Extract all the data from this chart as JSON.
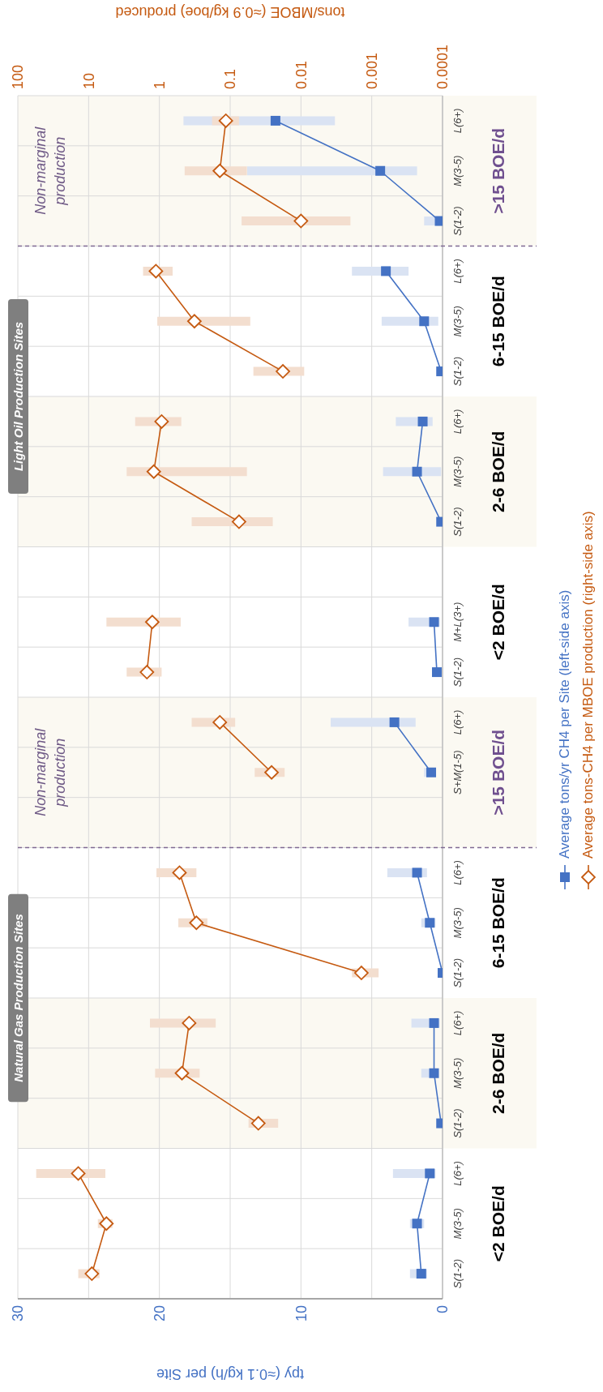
{
  "chart_data": {
    "type": "line",
    "orientation": "horizontal",
    "categories": [
      "L(6+)",
      "M(3-5)",
      "S(1-2)",
      "L(6+)",
      "M(3-5)",
      "S(1-2)",
      "L(6+)",
      "M(3-5)",
      "S(1-2)",
      null,
      "M+L(3+)",
      "S(1-2)",
      "L(6+)",
      "S+M(1-5)",
      null,
      "L(6+)",
      "M(3-5)",
      "S(1-2)",
      "L(6+)",
      "M(3-5)",
      "S(1-2)",
      "L(6+)",
      "M(3-5)",
      "S(1-2)"
    ],
    "series": [
      {
        "name": "Average tons/yr CH4 per Site (left-side axis)",
        "color": "#4472c4",
        "marker": "square",
        "values": [
          11.8,
          4.4,
          0.2,
          4.0,
          1.3,
          0.1,
          1.4,
          1.8,
          0.1,
          null,
          0.6,
          0.4,
          3.4,
          0.8,
          null,
          1.8,
          0.9,
          0,
          0.6,
          0.6,
          0.1,
          0.9,
          1.8,
          1.5
        ],
        "errors": [
          [
            7.6,
            18.3
          ],
          [
            1.8,
            13.8
          ],
          [
            0,
            1.3
          ],
          [
            2.4,
            6.4
          ],
          [
            0.3,
            4.3
          ],
          null,
          [
            0.7,
            3.3
          ],
          [
            0.1,
            4.2
          ],
          null,
          null,
          [
            0.2,
            2.4
          ],
          [
            0.2,
            0.7
          ],
          [
            1.9,
            7.9
          ],
          [
            0.5,
            1.3
          ],
          null,
          [
            1.1,
            3.9
          ],
          [
            0.5,
            1.5
          ],
          null,
          [
            0.2,
            2.2
          ],
          [
            0.3,
            1.5
          ],
          null,
          [
            0.5,
            3.5
          ],
          [
            1.3,
            2.3
          ],
          [
            1.1,
            2.3
          ]
        ]
      },
      {
        "name": "Average tons-CH4 per MBOE production (right-side axis)",
        "color": "#c55a11",
        "axis": "x2",
        "marker": "diamond",
        "values": [
          0.115,
          0.14,
          0.01,
          1.12,
          0.32,
          0.018,
          0.93,
          1.2,
          0.075,
          null,
          1.26,
          1.5,
          0.14,
          0.026,
          null,
          0.52,
          0.3,
          0.0014,
          0.38,
          0.48,
          0.04,
          14,
          5.6,
          9
        ],
        "errors": [
          [
            0.075,
            0.18
          ],
          [
            0.058,
            0.44
          ],
          [
            0.002,
            0.069
          ],
          [
            0.65,
            1.7
          ],
          [
            0.052,
            1.07
          ],
          [
            0.009,
            0.047
          ],
          [
            0.49,
            2.2
          ],
          [
            0.058,
            2.9
          ],
          [
            0.025,
            0.35
          ],
          null,
          [
            0.5,
            5.6
          ],
          [
            0.93,
            2.9
          ],
          [
            0.085,
            0.35
          ],
          [
            0.017,
            0.045
          ],
          null,
          [
            0.3,
            1.1
          ],
          [
            0.21,
            0.54
          ],
          [
            0.0008,
            0.0019
          ],
          [
            0.16,
            1.36
          ],
          [
            0.27,
            1.15
          ],
          [
            0.021,
            0.055
          ],
          [
            5.8,
            55
          ],
          [
            4.6,
            7.4
          ],
          [
            7,
            14
          ]
        ]
      }
    ],
    "xlabel": "tpy (≈0.1 kg/h) per Site",
    "x2label": "tons/MBOE (≈0.9 kg/boe) produced",
    "xlim": [
      30,
      0
    ],
    "xticks": [
      0,
      10,
      20,
      30
    ],
    "x2lim": [
      100,
      0.0001
    ],
    "x2ticks": [
      0.0001,
      0.001,
      0.01,
      0.1,
      1,
      10,
      100
    ],
    "log": "x2",
    "grid": true,
    "legend": "right",
    "annotations": [
      ">15 BOE/d",
      "6-15 BOE/d",
      "2-6 BOE/d",
      "<2 BOE/d",
      ">15 BOE/d",
      "6-15 BOE/d",
      "2-6 BOE/d",
      "<2 BOE/d",
      "Light Oil Production Sites",
      "Natural Gas Production Sites",
      "Non-marginal production",
      "Non-marginal production"
    ]
  }
}
